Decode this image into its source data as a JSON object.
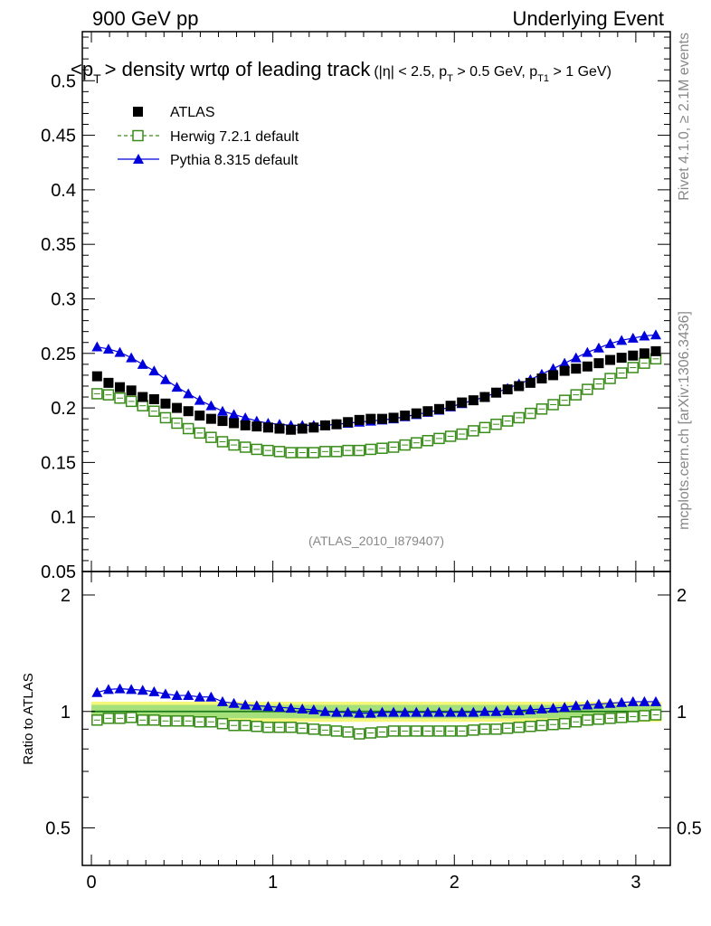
{
  "header": {
    "left": "900 GeV pp",
    "right": "Underlying Event"
  },
  "title": {
    "main": "<p",
    "main_sub": "T",
    "main_rest": "> density wrtφ of leading track",
    "cuts_1": "(|η| < 2.5, p",
    "cuts_1_sub": "T",
    "cuts_2": " > 0.5 GeV, p",
    "cuts_2_sub": "T1",
    "cuts_3": " > 1 GeV)"
  },
  "side_labels": {
    "rivet": "Rivet 4.1.0, ≥ 2.1M events",
    "mcplots": "mcplots.cern.ch [arXiv:1306.3436]"
  },
  "watermark": "(ATLAS_2010_I879407)",
  "ratio_ylabel": "Ratio to ATLAS",
  "legend": {
    "atlas": "ATLAS",
    "herwig": "Herwig 7.2.1 default",
    "pythia": "Pythia 8.315 default"
  },
  "colors": {
    "atlas": "#000000",
    "herwig": "#3a8c1a",
    "pythia": "#0000dd",
    "band_inner": "#a6e07a",
    "band_outer": "#f4f77a",
    "ref_line": "#1a7a1a"
  },
  "chart_data": {
    "type": "scatter",
    "title": "<pT> density wrt phi of leading track",
    "xlabel": "",
    "ylabel": "",
    "xlim": [
      -0.05,
      3.19
    ],
    "ylim": [
      0.05,
      0.545
    ],
    "ratio_ylim": [
      0.4,
      2.3
    ],
    "x_ticks": [
      0,
      1,
      2,
      3
    ],
    "y_ticks": [
      0.05,
      0.1,
      0.15,
      0.2,
      0.25,
      0.3,
      0.35,
      0.4,
      0.45,
      0.5
    ],
    "ratio_ticks": [
      0.5,
      1,
      2
    ],
    "x": [
      0.0314,
      0.0942,
      0.157,
      0.2199,
      0.2827,
      0.3456,
      0.4084,
      0.4712,
      0.5341,
      0.5969,
      0.6597,
      0.7226,
      0.7854,
      0.8482,
      0.9111,
      0.9739,
      1.0367,
      1.0996,
      1.1624,
      1.2252,
      1.2881,
      1.3509,
      1.4137,
      1.4765,
      1.5394,
      1.6022,
      1.665,
      1.7279,
      1.7907,
      1.8535,
      1.9164,
      1.9792,
      2.042,
      2.1049,
      2.1677,
      2.2305,
      2.2934,
      2.3562,
      2.419,
      2.4819,
      2.5447,
      2.6075,
      2.6704,
      2.7332,
      2.796,
      2.8588,
      2.9217,
      2.9845,
      3.0473,
      3.1102
    ],
    "series": [
      {
        "name": "ATLAS",
        "values": [
          0.229,
          0.223,
          0.219,
          0.216,
          0.21,
          0.208,
          0.204,
          0.2,
          0.197,
          0.193,
          0.19,
          0.188,
          0.186,
          0.184,
          0.183,
          0.182,
          0.181,
          0.18,
          0.181,
          0.182,
          0.184,
          0.185,
          0.187,
          0.189,
          0.19,
          0.19,
          0.191,
          0.193,
          0.195,
          0.197,
          0.199,
          0.202,
          0.205,
          0.207,
          0.21,
          0.214,
          0.217,
          0.22,
          0.223,
          0.227,
          0.23,
          0.234,
          0.236,
          0.238,
          0.241,
          0.244,
          0.246,
          0.248,
          0.25,
          0.252
        ]
      },
      {
        "name": "Herwig 7.2.1 default",
        "values": [
          0.213,
          0.212,
          0.209,
          0.206,
          0.202,
          0.197,
          0.191,
          0.186,
          0.181,
          0.177,
          0.173,
          0.169,
          0.166,
          0.164,
          0.162,
          0.161,
          0.16,
          0.159,
          0.159,
          0.159,
          0.16,
          0.16,
          0.161,
          0.161,
          0.162,
          0.163,
          0.164,
          0.166,
          0.168,
          0.17,
          0.172,
          0.174,
          0.176,
          0.179,
          0.182,
          0.185,
          0.188,
          0.191,
          0.195,
          0.199,
          0.203,
          0.207,
          0.212,
          0.217,
          0.222,
          0.227,
          0.232,
          0.237,
          0.241,
          0.245
        ]
      },
      {
        "name": "Pythia 8.315 default",
        "values": [
          0.256,
          0.254,
          0.251,
          0.246,
          0.24,
          0.234,
          0.226,
          0.219,
          0.213,
          0.207,
          0.202,
          0.197,
          0.194,
          0.191,
          0.188,
          0.186,
          0.185,
          0.184,
          0.184,
          0.184,
          0.184,
          0.185,
          0.186,
          0.187,
          0.188,
          0.189,
          0.19,
          0.192,
          0.194,
          0.196,
          0.198,
          0.201,
          0.204,
          0.207,
          0.21,
          0.214,
          0.218,
          0.222,
          0.226,
          0.231,
          0.236,
          0.241,
          0.246,
          0.251,
          0.255,
          0.259,
          0.262,
          0.264,
          0.266,
          0.267
        ]
      }
    ],
    "ratios": {
      "herwig": [
        0.95,
        0.96,
        0.96,
        0.965,
        0.95,
        0.95,
        0.945,
        0.945,
        0.945,
        0.94,
        0.94,
        0.93,
        0.92,
        0.92,
        0.915,
        0.91,
        0.91,
        0.91,
        0.905,
        0.9,
        0.895,
        0.89,
        0.885,
        0.875,
        0.88,
        0.885,
        0.89,
        0.89,
        0.89,
        0.89,
        0.89,
        0.89,
        0.89,
        0.895,
        0.9,
        0.9,
        0.905,
        0.91,
        0.915,
        0.92,
        0.925,
        0.93,
        0.94,
        0.95,
        0.955,
        0.96,
        0.965,
        0.97,
        0.975,
        0.98
      ],
      "pythia": [
        1.12,
        1.14,
        1.145,
        1.14,
        1.135,
        1.125,
        1.11,
        1.1,
        1.1,
        1.09,
        1.09,
        1.06,
        1.05,
        1.04,
        1.035,
        1.03,
        1.025,
        1.02,
        1.015,
        1.01,
        1.0,
        0.995,
        0.995,
        0.99,
        0.99,
        0.995,
        0.995,
        0.995,
        0.995,
        0.995,
        0.995,
        0.995,
        0.995,
        0.995,
        1.0,
        1.0,
        1.005,
        1.005,
        1.01,
        1.015,
        1.02,
        1.025,
        1.035,
        1.04,
        1.045,
        1.05,
        1.055,
        1.06,
        1.06,
        1.06
      ]
    },
    "band": {
      "inner": [
        0.96,
        1.04
      ],
      "outer": [
        0.94,
        1.06
      ]
    }
  }
}
